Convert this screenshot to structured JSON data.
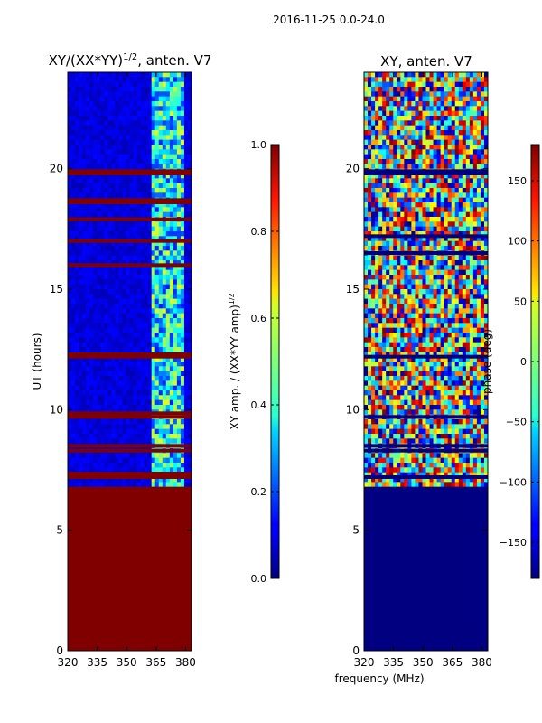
{
  "suptitle": "2016-11-25 0.0-24.0",
  "chart_data": [
    {
      "type": "heatmap",
      "title_prefix": "XY/(XX*YY)",
      "title_exponent": "1/2",
      "title_suffix": ", anten. V7",
      "xlabel": "",
      "ylabel": "UT (hours)",
      "xlim": [
        320,
        383
      ],
      "ylim": [
        0,
        24
      ],
      "xticks": [
        "320",
        "335",
        "350",
        "365",
        "380"
      ],
      "yticks": [
        "0",
        "5",
        "10",
        "15",
        "20"
      ],
      "colormap": "jet",
      "colorbar": {
        "label_prefix": "XY amp. / (XX*YY amp)",
        "label_exponent": "1/2",
        "range": [
          0.0,
          1.0
        ],
        "ticks": [
          "0.0",
          "0.2",
          "0.4",
          "0.6",
          "0.8",
          "1.0"
        ]
      },
      "base_value": 0.05,
      "flagged_below_hour": 6.8,
      "flagged_value": 1.0,
      "flagged_hours": [
        7.2,
        7.35,
        8.3,
        8.5,
        9.7,
        9.85,
        12.2,
        12.3,
        16.0,
        17.0,
        17.9,
        18.6,
        18.7,
        19.8,
        19.9
      ],
      "bright_band_mhz": [
        363,
        380
      ]
    },
    {
      "type": "heatmap",
      "title": "XY, anten. V7",
      "xlabel": "frequency (MHz)",
      "ylabel": "",
      "xlim": [
        320,
        383
      ],
      "ylim": [
        0,
        24
      ],
      "xticks": [
        "320",
        "335",
        "350",
        "365",
        "380"
      ],
      "yticks": [
        "0",
        "5",
        "10",
        "15",
        "20"
      ],
      "colormap": "jet",
      "colorbar": {
        "label": "phase (deg)",
        "range": [
          -180,
          180
        ],
        "ticks": [
          "−150",
          "−100",
          "−50",
          "0",
          "50",
          "100",
          "150"
        ]
      },
      "flagged_below_hour": 6.8,
      "flagged_value": -180,
      "flagged_hours": [
        7.2,
        8.3,
        8.5,
        9.7,
        12.2,
        16.5,
        17.2,
        19.8,
        19.9
      ]
    }
  ],
  "colors": {
    "frame": "#000000",
    "flag_red": "#800000",
    "flag_blue": "#00007f"
  }
}
